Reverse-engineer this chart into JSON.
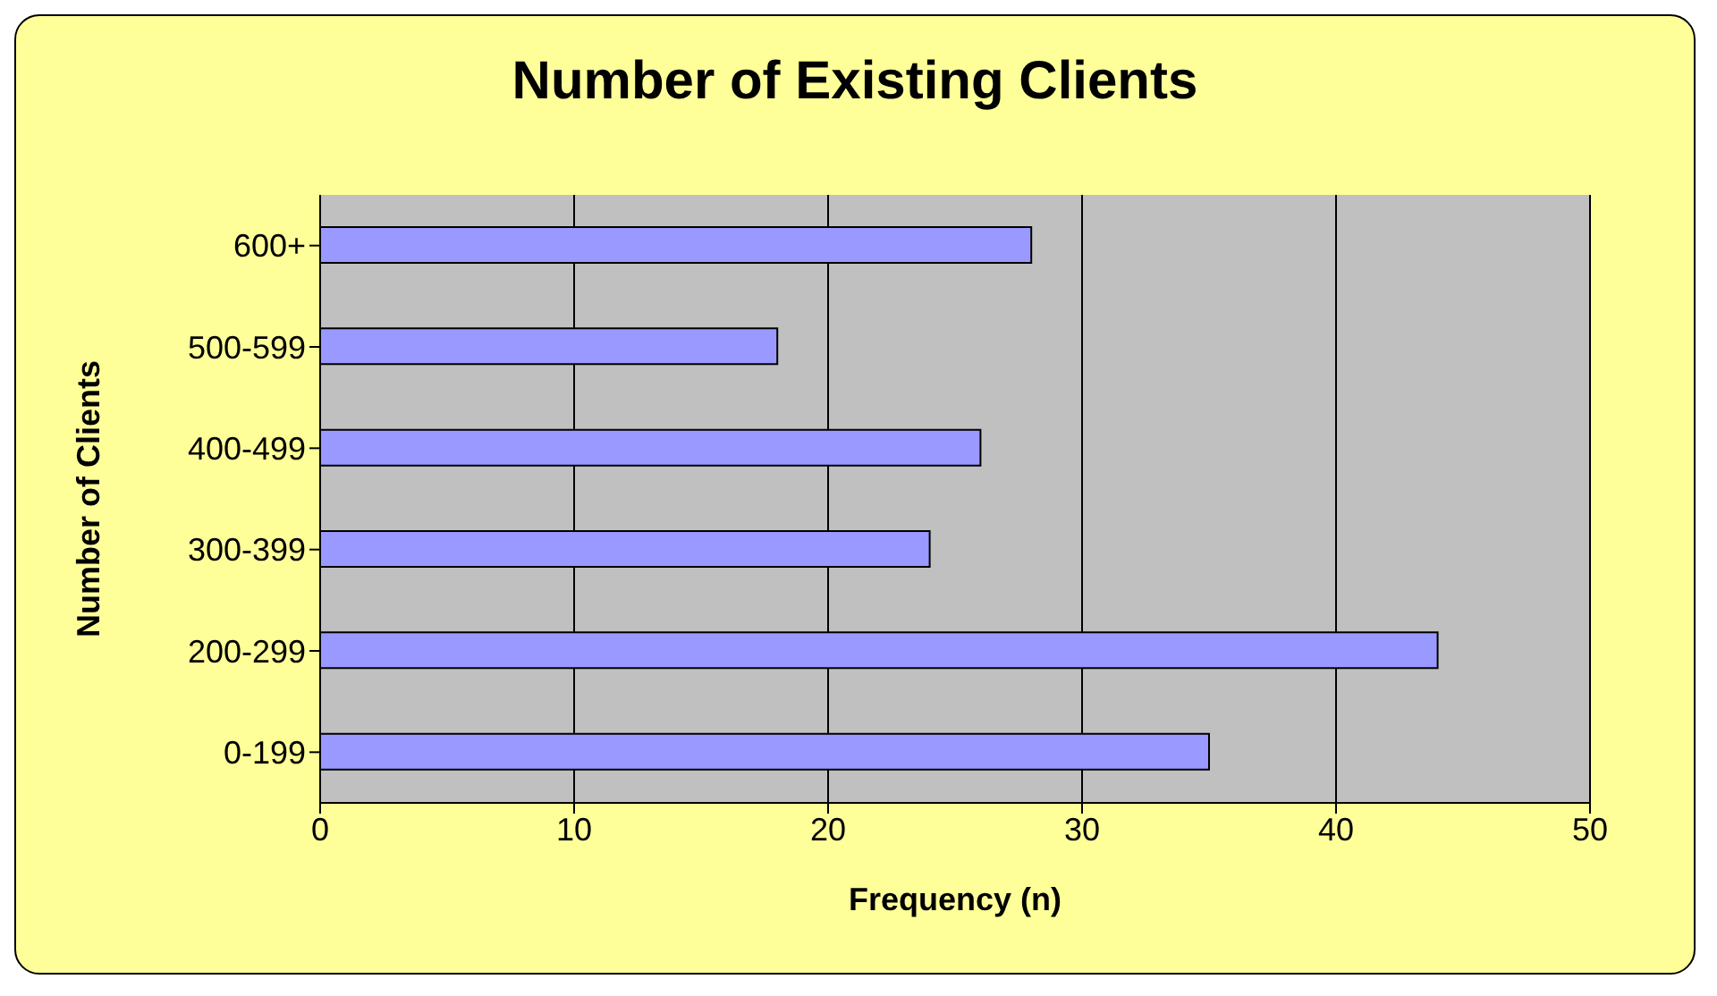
{
  "chart_data": {
    "type": "bar",
    "orientation": "horizontal",
    "title": "Number of Existing Clients",
    "xlabel": "Frequency (n)",
    "ylabel": "Number of Clients",
    "categories": [
      "600+",
      "500-599",
      "400-499",
      "300-399",
      "200-299",
      "0-199"
    ],
    "values": [
      28,
      18,
      26,
      24,
      44,
      35
    ],
    "color": "#9999ff",
    "xlim": [
      0,
      50
    ],
    "xticks": [
      0,
      10,
      20,
      30,
      40,
      50
    ],
    "grid": "x"
  }
}
